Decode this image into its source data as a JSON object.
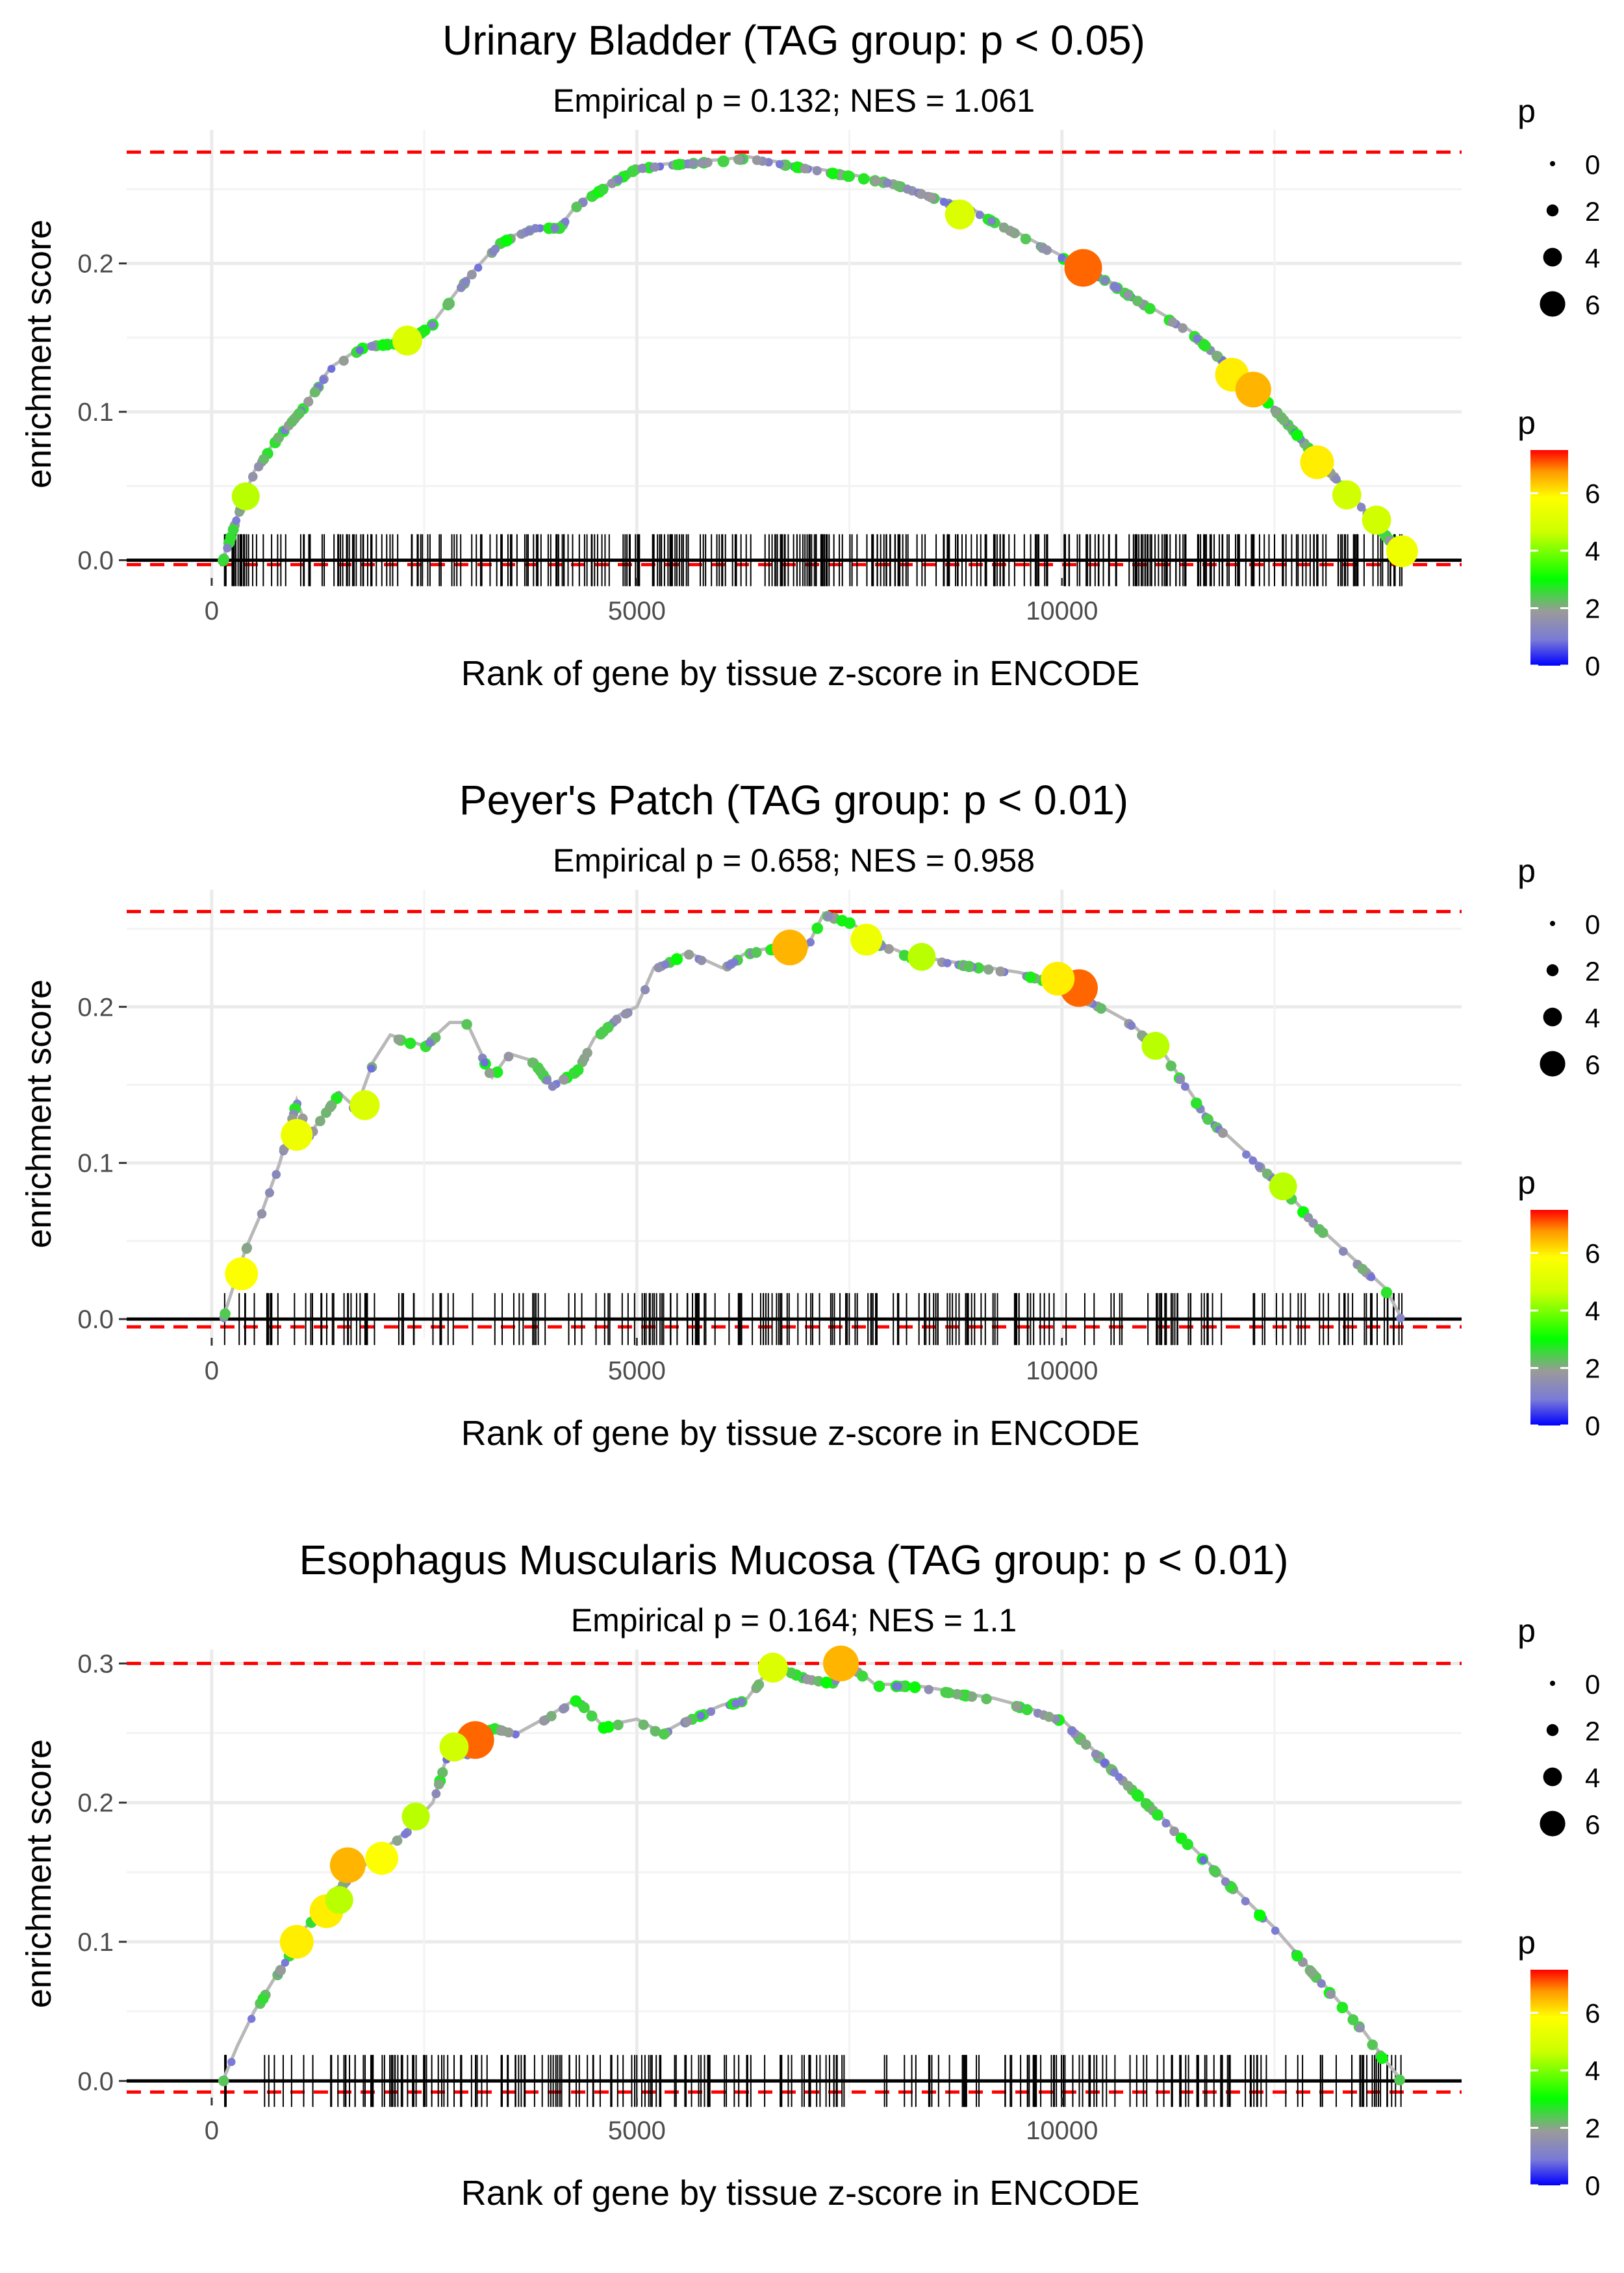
{
  "chart_data": [
    {
      "type": "line",
      "title": "Urinary Bladder (TAG group: p < 0.05)",
      "subtitle": "Empirical p = 0.132; NES = 1.061",
      "xlabel": "Rank of gene by tissue z-score in ENCODE",
      "ylabel": "enrichment score",
      "xlim": [
        -1000,
        14700
      ],
      "ylim": [
        -0.012,
        0.29
      ],
      "xticks": [
        0,
        5000,
        10000
      ],
      "xtick_labels": [
        "0",
        "5000",
        "10000"
      ],
      "yticks": [
        0.0,
        0.1,
        0.2
      ],
      "ytick_labels": [
        "0.0",
        "0.1",
        "0.2"
      ],
      "max_es": 0.275,
      "min_es": -0.003,
      "n_genes": 14000,
      "curve": [
        [
          130,
          0.0
        ],
        [
          300,
          0.03
        ],
        [
          500,
          0.06
        ],
        [
          800,
          0.085
        ],
        [
          1100,
          0.105
        ],
        [
          1400,
          0.13
        ],
        [
          1800,
          0.145
        ],
        [
          2300,
          0.148
        ],
        [
          2600,
          0.16
        ],
        [
          3000,
          0.19
        ],
        [
          3400,
          0.215
        ],
        [
          3800,
          0.225
        ],
        [
          4100,
          0.225
        ],
        [
          4300,
          0.24
        ],
        [
          4700,
          0.255
        ],
        [
          5000,
          0.265
        ],
        [
          5500,
          0.268
        ],
        [
          6000,
          0.27
        ],
        [
          6300,
          0.272
        ],
        [
          7000,
          0.265
        ],
        [
          7500,
          0.26
        ],
        [
          8000,
          0.255
        ],
        [
          8500,
          0.245
        ],
        [
          9000,
          0.235
        ],
        [
          9500,
          0.22
        ],
        [
          10000,
          0.205
        ],
        [
          10500,
          0.19
        ],
        [
          11000,
          0.172
        ],
        [
          11500,
          0.155
        ],
        [
          12000,
          0.13
        ],
        [
          12300,
          0.115
        ],
        [
          12700,
          0.09
        ],
        [
          13000,
          0.07
        ],
        [
          13400,
          0.045
        ],
        [
          13700,
          0.025
        ],
        [
          14000,
          0.005
        ]
      ],
      "highlights": [
        {
          "x": 10250,
          "y": 0.197,
          "p": 7.0
        },
        {
          "x": 12000,
          "y": 0.125,
          "p": 6.0
        },
        {
          "x": 12250,
          "y": 0.115,
          "p": 6.5
        },
        {
          "x": 13000,
          "y": 0.066,
          "p": 6.0
        },
        {
          "x": 14000,
          "y": 0.006,
          "p": 5.5
        },
        {
          "x": 13350,
          "y": 0.044,
          "p": 4.8
        },
        {
          "x": 13700,
          "y": 0.027,
          "p": 4.8
        },
        {
          "x": 8800,
          "y": 0.233,
          "p": 5.0
        },
        {
          "x": 2300,
          "y": 0.148,
          "p": 5.0
        },
        {
          "x": 400,
          "y": 0.043,
          "p": 4.5
        }
      ],
      "rug": {
        "start": 150,
        "end": 14000,
        "count": 380,
        "seed": 11
      },
      "size_legend": {
        "title": "p",
        "values": [
          0,
          2,
          4,
          6
        ]
      },
      "color_legend": {
        "title": "p",
        "ticks": [
          0,
          2,
          4,
          6
        ],
        "max": 7.5
      }
    },
    {
      "type": "line",
      "title": "Peyer's Patch (TAG group: p < 0.01)",
      "subtitle": "Empirical p = 0.658; NES = 0.958",
      "xlabel": "Rank of gene by tissue z-score in ENCODE",
      "ylabel": "enrichment score",
      "xlim": [
        -1000,
        14700
      ],
      "ylim": [
        -0.012,
        0.275
      ],
      "xticks": [
        0,
        5000,
        10000
      ],
      "xtick_labels": [
        "0",
        "5000",
        "10000"
      ],
      "yticks": [
        0.0,
        0.1,
        0.2
      ],
      "ytick_labels": [
        "0.0",
        "0.1",
        "0.2"
      ],
      "max_es": 0.261,
      "min_es": -0.005,
      "n_genes": 14000,
      "curve": [
        [
          130,
          0.0
        ],
        [
          250,
          0.02
        ],
        [
          400,
          0.045
        ],
        [
          600,
          0.07
        ],
        [
          800,
          0.1
        ],
        [
          1000,
          0.14
        ],
        [
          1150,
          0.118
        ],
        [
          1300,
          0.13
        ],
        [
          1500,
          0.145
        ],
        [
          1700,
          0.135
        ],
        [
          1900,
          0.165
        ],
        [
          2100,
          0.182
        ],
        [
          2500,
          0.175
        ],
        [
          2800,
          0.19
        ],
        [
          3000,
          0.19
        ],
        [
          3300,
          0.155
        ],
        [
          3500,
          0.17
        ],
        [
          3800,
          0.165
        ],
        [
          4000,
          0.15
        ],
        [
          4300,
          0.16
        ],
        [
          4500,
          0.18
        ],
        [
          4800,
          0.195
        ],
        [
          5000,
          0.2
        ],
        [
          5200,
          0.225
        ],
        [
          5600,
          0.235
        ],
        [
          6000,
          0.225
        ],
        [
          6300,
          0.235
        ],
        [
          6800,
          0.24
        ],
        [
          7000,
          0.238
        ],
        [
          7200,
          0.26
        ],
        [
          7500,
          0.255
        ],
        [
          7800,
          0.242
        ],
        [
          8200,
          0.233
        ],
        [
          8800,
          0.228
        ],
        [
          9500,
          0.222
        ],
        [
          10000,
          0.215
        ],
        [
          10300,
          0.205
        ],
        [
          10800,
          0.19
        ],
        [
          11200,
          0.17
        ],
        [
          11700,
          0.13
        ],
        [
          12100,
          0.11
        ],
        [
          12500,
          0.09
        ],
        [
          13000,
          0.06
        ],
        [
          13500,
          0.035
        ],
        [
          13800,
          0.02
        ],
        [
          14000,
          0.0
        ]
      ],
      "highlights": [
        {
          "x": 10200,
          "y": 0.212,
          "p": 7.0
        },
        {
          "x": 9950,
          "y": 0.218,
          "p": 6.0
        },
        {
          "x": 6800,
          "y": 0.238,
          "p": 6.5
        },
        {
          "x": 7700,
          "y": 0.243,
          "p": 5.5
        },
        {
          "x": 1000,
          "y": 0.118,
          "p": 5.5
        },
        {
          "x": 350,
          "y": 0.029,
          "p": 5.8
        },
        {
          "x": 1800,
          "y": 0.137,
          "p": 5.0
        },
        {
          "x": 12600,
          "y": 0.085,
          "p": 4.5
        },
        {
          "x": 11100,
          "y": 0.175,
          "p": 4.5
        },
        {
          "x": 8350,
          "y": 0.232,
          "p": 4.5
        }
      ],
      "rug": {
        "start": 150,
        "end": 14000,
        "count": 230,
        "seed": 23
      },
      "size_legend": {
        "title": "p",
        "values": [
          0,
          2,
          4,
          6
        ]
      },
      "color_legend": {
        "title": "p",
        "ticks": [
          0,
          2,
          4,
          6
        ],
        "max": 7.5
      }
    },
    {
      "type": "line",
      "title": "Esophagus Muscularis Mucosa (TAG group: p < 0.01)",
      "subtitle": "Empirical p = 0.164; NES = 1.1",
      "xlabel": "Rank of gene by tissue z-score in ENCODE",
      "ylabel": "enrichment score",
      "xlim": [
        -1000,
        14700
      ],
      "ylim": [
        -0.012,
        0.31
      ],
      "xticks": [
        0,
        5000,
        10000
      ],
      "xtick_labels": [
        "0",
        "5000",
        "10000"
      ],
      "yticks": [
        0.0,
        0.1,
        0.2,
        0.3
      ],
      "ytick_labels": [
        "0.0",
        "0.1",
        "0.2",
        "0.3"
      ],
      "max_es": 0.3,
      "min_es": -0.008,
      "n_genes": 14000,
      "curve": [
        [
          130,
          0.0
        ],
        [
          300,
          0.025
        ],
        [
          500,
          0.05
        ],
        [
          700,
          0.07
        ],
        [
          900,
          0.09
        ],
        [
          1100,
          0.11
        ],
        [
          1300,
          0.125
        ],
        [
          1500,
          0.14
        ],
        [
          1700,
          0.15
        ],
        [
          2000,
          0.165
        ],
        [
          2300,
          0.18
        ],
        [
          2600,
          0.2
        ],
        [
          2800,
          0.24
        ],
        [
          3000,
          0.235
        ],
        [
          3300,
          0.255
        ],
        [
          3600,
          0.25
        ],
        [
          3900,
          0.26
        ],
        [
          4300,
          0.275
        ],
        [
          4600,
          0.255
        ],
        [
          5000,
          0.26
        ],
        [
          5300,
          0.25
        ],
        [
          5600,
          0.26
        ],
        [
          6000,
          0.27
        ],
        [
          6300,
          0.275
        ],
        [
          6600,
          0.3
        ],
        [
          7000,
          0.29
        ],
        [
          7300,
          0.287
        ],
        [
          7500,
          0.3
        ],
        [
          7800,
          0.285
        ],
        [
          8200,
          0.285
        ],
        [
          8700,
          0.28
        ],
        [
          9200,
          0.275
        ],
        [
          9500,
          0.27
        ],
        [
          10000,
          0.26
        ],
        [
          10500,
          0.23
        ],
        [
          11000,
          0.2
        ],
        [
          11500,
          0.17
        ],
        [
          12000,
          0.14
        ],
        [
          12500,
          0.11
        ],
        [
          13000,
          0.075
        ],
        [
          13500,
          0.04
        ],
        [
          13800,
          0.015
        ],
        [
          14000,
          0.0
        ]
      ],
      "highlights": [
        {
          "x": 3100,
          "y": 0.245,
          "p": 7.0
        },
        {
          "x": 7400,
          "y": 0.3,
          "p": 6.5
        },
        {
          "x": 1600,
          "y": 0.155,
          "p": 6.5
        },
        {
          "x": 1000,
          "y": 0.1,
          "p": 6.0
        },
        {
          "x": 1350,
          "y": 0.122,
          "p": 6.0
        },
        {
          "x": 2000,
          "y": 0.16,
          "p": 5.8
        },
        {
          "x": 6600,
          "y": 0.297,
          "p": 5.0
        },
        {
          "x": 2850,
          "y": 0.24,
          "p": 4.8
        },
        {
          "x": 2400,
          "y": 0.19,
          "p": 4.5
        },
        {
          "x": 1500,
          "y": 0.13,
          "p": 4.5
        }
      ],
      "rug": {
        "start": 150,
        "end": 14000,
        "count": 250,
        "seed": 37
      },
      "size_legend": {
        "title": "p",
        "values": [
          0,
          2,
          4,
          6
        ]
      },
      "color_legend": {
        "title": "p",
        "ticks": [
          0,
          2,
          4,
          6
        ],
        "max": 7.5
      }
    }
  ]
}
